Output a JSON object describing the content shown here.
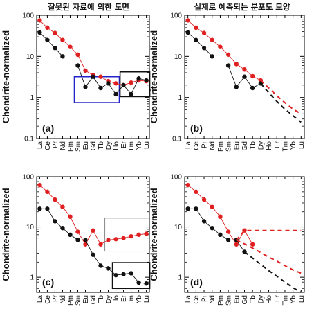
{
  "figure_titles": [
    "잘못된 자료에 의한 도면",
    "실제로 예측되는 분포도 모양"
  ],
  "chart_data": [
    {
      "type": "line",
      "panel_label": "(a)",
      "ylabel": "Chondrite-normalized",
      "yscale": "log",
      "ylim": [
        0.1,
        100
      ],
      "yticks": [
        "0.1",
        "1",
        "10",
        "100"
      ],
      "categories": [
        "La",
        "Ce",
        "Pr",
        "Nd",
        "Pm",
        "Sm",
        "Eu",
        "Gd",
        "Tb",
        "Dy",
        "Ho",
        "Er",
        "Tm",
        "Yb",
        "Lu"
      ],
      "series": [
        {
          "color": "#e02020",
          "style": "solid",
          "values": [
            75,
            50,
            37,
            25,
            17,
            11,
            4.5,
            3.5,
            3.2,
            2.5,
            2.2,
            2.0,
            2.3,
            2.6,
            2.5
          ]
        },
        {
          "color": "#111111",
          "style": "solid",
          "values": [
            38,
            25,
            16,
            10,
            null,
            6,
            1.8,
            3.2,
            1.7,
            2.2,
            1.2,
            2.0,
            1.2,
            2.9,
            2.6
          ]
        }
      ],
      "annotations": [
        {
          "kind": "box",
          "color": "#2222cc",
          "x_from": "Sm",
          "x_to": "Ho",
          "y_from": 0.75,
          "y_to": 3.2
        },
        {
          "kind": "box",
          "color": "#111111",
          "x_from": "Er",
          "x_to": "Lu",
          "y_from": 1.05,
          "y_to": 4.2
        }
      ]
    },
    {
      "type": "line",
      "panel_label": "(b)",
      "ylabel": "Chondrite-normalized",
      "yscale": "log",
      "ylim": [
        0.1,
        100
      ],
      "yticks": [
        "0.1",
        "1",
        "10",
        "100"
      ],
      "categories": [
        "La",
        "Ce",
        "Pr",
        "Nd",
        "Pm",
        "Sm",
        "Eu",
        "Gd",
        "Tb",
        "Dy",
        "Ho",
        "Er",
        "Tm",
        "Yb",
        "Lu"
      ],
      "series": [
        {
          "color": "#e02020",
          "style": "solid",
          "values": [
            75,
            50,
            37,
            25,
            17,
            11,
            6.5,
            4.8,
            3.3,
            2.6,
            null,
            null,
            null,
            null,
            null
          ]
        },
        {
          "color": "#111111",
          "style": "solid",
          "values": [
            38,
            25,
            16,
            10,
            null,
            6,
            1.8,
            3.2,
            1.7,
            2.2,
            null,
            null,
            null,
            null,
            null
          ]
        },
        {
          "color": "#e02020",
          "style": "dashed",
          "values": [
            null,
            null,
            null,
            null,
            null,
            null,
            null,
            null,
            null,
            2.6,
            1.7,
            1.1,
            0.75,
            0.52,
            0.4
          ]
        },
        {
          "color": "#111111",
          "style": "dashed",
          "values": [
            null,
            null,
            null,
            null,
            null,
            null,
            null,
            null,
            null,
            2.2,
            1.3,
            0.8,
            0.52,
            0.36,
            0.25
          ]
        }
      ],
      "annotations": []
    },
    {
      "type": "line",
      "panel_label": "(c)",
      "ylabel": "Chondrite-normalized",
      "yscale": "log",
      "ylim": [
        0.5,
        100
      ],
      "yticks": [
        "1",
        "10",
        "100"
      ],
      "categories": [
        "La",
        "Ce",
        "Pr",
        "Nd",
        "Pm",
        "Sm",
        "Eu",
        "Gd",
        "Tb",
        "Dy",
        "Ho",
        "Er",
        "Tm",
        "Yb",
        "Lu"
      ],
      "series": [
        {
          "color": "#e02020",
          "style": "solid",
          "values": [
            68,
            50,
            35,
            25,
            16,
            8,
            4.5,
            8.5,
            4.5,
            5.5,
            5.7,
            6.0,
            6.5,
            7.0,
            7.3
          ]
        },
        {
          "color": "#111111",
          "style": "solid",
          "values": [
            23,
            23,
            13,
            9.5,
            7,
            5.5,
            5.5,
            2.8,
            1.7,
            1.5,
            1.1,
            1.15,
            1.2,
            0.78,
            0.75
          ]
        }
      ],
      "annotations": [
        {
          "kind": "box",
          "color": "#888888",
          "x_from": "Dy",
          "x_to": "Lu",
          "y_from": 3.3,
          "y_to": 15
        },
        {
          "kind": "box",
          "color": "#111111",
          "x_from": "Ho",
          "x_to": "Lu",
          "y_from": 0.6,
          "y_to": 1.95
        }
      ]
    },
    {
      "type": "line",
      "panel_label": "(d)",
      "ylabel": "Chondrite-normalized",
      "yscale": "log",
      "ylim": [
        0.5,
        100
      ],
      "yticks": [
        "1",
        "10",
        "100"
      ],
      "categories": [
        "La",
        "Ce",
        "Pr",
        "Nd",
        "Pm",
        "Sm",
        "Eu",
        "Gd",
        "Tb",
        "Dy",
        "Ho",
        "Er",
        "Tm",
        "Yb",
        "Lu"
      ],
      "series": [
        {
          "color": "#e02020",
          "style": "solid",
          "values": [
            68,
            50,
            35,
            25,
            16,
            8,
            4.5,
            8.5,
            4.5,
            null,
            null,
            null,
            null,
            null,
            null
          ]
        },
        {
          "color": "#111111",
          "style": "solid",
          "values": [
            23,
            23,
            13,
            9.5,
            7,
            5.5,
            5.5,
            3.2,
            null,
            null,
            null,
            null,
            null,
            null,
            null
          ]
        },
        {
          "color": "#e02020",
          "style": "dashed",
          "values": [
            null,
            null,
            null,
            null,
            null,
            null,
            5.5,
            8.5,
            8.5,
            8.5,
            8.5,
            8.5,
            8.5,
            8.5,
            8.5
          ]
        },
        {
          "color": "#e02020",
          "style": "dashed",
          "values": [
            null,
            null,
            null,
            null,
            null,
            null,
            5.5,
            4.6,
            3.8,
            3.1,
            2.5,
            2.1,
            1.7,
            1.4,
            1.2
          ]
        },
        {
          "color": "#111111",
          "style": "dashed",
          "values": [
            null,
            null,
            null,
            null,
            null,
            null,
            null,
            3.2,
            2.4,
            1.8,
            1.35,
            1.05,
            0.8,
            0.62,
            0.5
          ]
        }
      ],
      "annotations": []
    }
  ]
}
